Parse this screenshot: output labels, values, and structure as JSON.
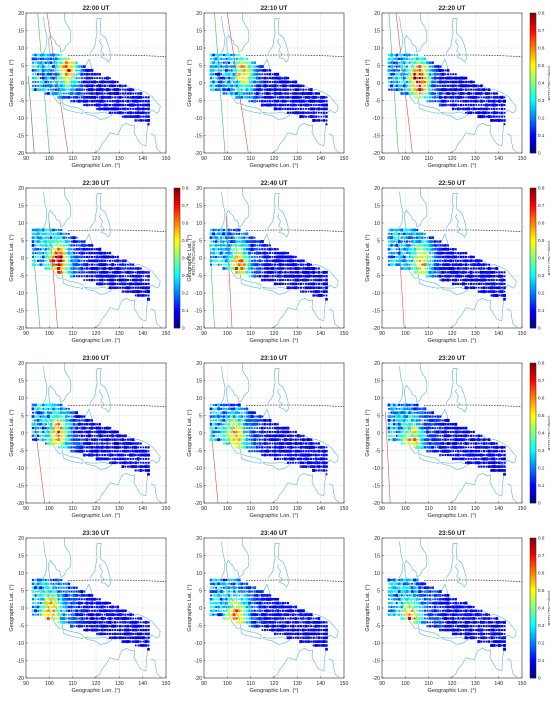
{
  "figure": {
    "xlabel": "Geographic Lon. (°)",
    "ylabel": "Geographic Lat. (°)",
    "x_ticks": [
      "90",
      "100",
      "110",
      "120",
      "130",
      "140",
      "150"
    ],
    "y_ticks": [
      "20",
      "15",
      "10",
      "5",
      "0",
      "-5",
      "-10",
      "-15",
      "-20"
    ],
    "colorbar_label": "ROTI (TECU/min)",
    "colorbar_ticks": [
      "0.8",
      "0.7",
      "0.6",
      "0.5",
      "0.4",
      "0.3",
      "0.2",
      "0.1",
      "0"
    ],
    "colors": {
      "coastline": "#5fb8d0",
      "dip_equator": "#000000",
      "terminator_red": "#e35050",
      "terminator_green": "#3ec25a",
      "grid": "#e6e6e6"
    }
  },
  "chart_data": [
    {
      "type": "heatmap",
      "title": "22:00 UT",
      "xlim": [
        90,
        150
      ],
      "ylim": [
        -20,
        20
      ],
      "colormap": "jet",
      "clim": [
        0,
        0.8
      ],
      "peak_roti": 0.6,
      "grid": true
    },
    {
      "type": "heatmap",
      "title": "22:10 UT",
      "xlim": [
        90,
        150
      ],
      "ylim": [
        -20,
        20
      ],
      "colormap": "jet",
      "clim": [
        0,
        0.8
      ],
      "peak_roti": 0.5,
      "grid": true
    },
    {
      "type": "heatmap",
      "title": "22:20 UT",
      "xlim": [
        90,
        150
      ],
      "ylim": [
        -20,
        20
      ],
      "colormap": "jet",
      "clim": [
        0,
        0.8
      ],
      "peak_roti": 0.8,
      "grid": true
    },
    {
      "type": "heatmap",
      "title": "22:30 UT",
      "xlim": [
        90,
        150
      ],
      "ylim": [
        -20,
        20
      ],
      "colormap": "jet",
      "clim": [
        0,
        0.8
      ],
      "peak_roti": 0.75,
      "grid": true
    },
    {
      "type": "heatmap",
      "title": "22:40 UT",
      "xlim": [
        90,
        150
      ],
      "ylim": [
        -20,
        20
      ],
      "colormap": "jet",
      "clim": [
        0,
        0.8
      ],
      "peak_roti": 0.55,
      "grid": true
    },
    {
      "type": "heatmap",
      "title": "22:50 UT",
      "xlim": [
        90,
        150
      ],
      "ylim": [
        -20,
        20
      ],
      "colormap": "jet",
      "clim": [
        0,
        0.8
      ],
      "peak_roti": 0.5,
      "grid": true
    },
    {
      "type": "heatmap",
      "title": "23:00 UT",
      "xlim": [
        90,
        150
      ],
      "ylim": [
        -20,
        20
      ],
      "colormap": "jet",
      "clim": [
        0,
        0.8
      ],
      "peak_roti": 0.5,
      "grid": true
    },
    {
      "type": "heatmap",
      "title": "23:10 UT",
      "xlim": [
        90,
        150
      ],
      "ylim": [
        -20,
        20
      ],
      "colormap": "jet",
      "clim": [
        0,
        0.8
      ],
      "peak_roti": 0.5,
      "grid": true
    },
    {
      "type": "heatmap",
      "title": "23:20 UT",
      "xlim": [
        90,
        150
      ],
      "ylim": [
        -20,
        20
      ],
      "colormap": "jet",
      "clim": [
        0,
        0.8
      ],
      "peak_roti": 0.45,
      "grid": true
    },
    {
      "type": "heatmap",
      "title": "23:30 UT",
      "xlim": [
        90,
        150
      ],
      "ylim": [
        -20,
        20
      ],
      "colormap": "jet",
      "clim": [
        0,
        0.8
      ],
      "peak_roti": 0.5,
      "grid": true
    },
    {
      "type": "heatmap",
      "title": "23:40 UT",
      "xlim": [
        90,
        150
      ],
      "ylim": [
        -20,
        20
      ],
      "colormap": "jet",
      "clim": [
        0,
        0.8
      ],
      "peak_roti": 0.55,
      "grid": true
    },
    {
      "type": "heatmap",
      "title": "23:50 UT",
      "xlim": [
        90,
        150
      ],
      "ylim": [
        -20,
        20
      ],
      "colormap": "jet",
      "clim": [
        0,
        0.8
      ],
      "peak_roti": 0.5,
      "grid": true
    }
  ]
}
